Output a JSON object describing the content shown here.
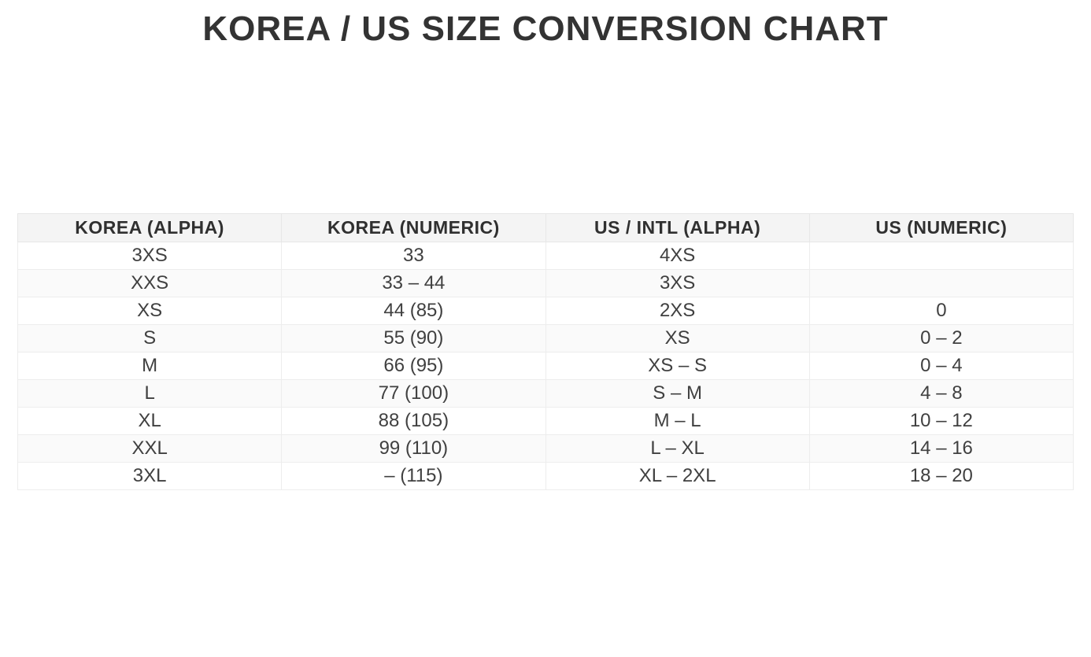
{
  "page": {
    "title": "KOREA / US SIZE CONVERSION CHART"
  },
  "table": {
    "headers": [
      "KOREA (ALPHA)",
      "KOREA (NUMERIC)",
      "US / INTL (ALPHA)",
      "US (NUMERIC)"
    ],
    "rows": [
      [
        "3XS",
        "33",
        "4XS",
        ""
      ],
      [
        "XXS",
        "33 – 44",
        "3XS",
        ""
      ],
      [
        "XS",
        "44 (85)",
        "2XS",
        "0"
      ],
      [
        "S",
        "55 (90)",
        "XS",
        "0 – 2"
      ],
      [
        "M",
        "66 (95)",
        "XS – S",
        "0 – 4"
      ],
      [
        "L",
        "77 (100)",
        "S – M",
        "4 – 8"
      ],
      [
        "XL",
        "88 (105)",
        "M – L",
        "10 – 12"
      ],
      [
        "XXL",
        "99 (110)",
        "L – XL",
        "14 – 16"
      ],
      [
        "3XL",
        "– (115)",
        "XL – 2XL",
        "18 – 20"
      ]
    ]
  },
  "chart_data": {
    "type": "table",
    "title": "KOREA / US SIZE CONVERSION CHART",
    "columns": [
      "KOREA (ALPHA)",
      "KOREA (NUMERIC)",
      "US / INTL (ALPHA)",
      "US (NUMERIC)"
    ],
    "rows": [
      [
        "3XS",
        "33",
        "4XS",
        ""
      ],
      [
        "XXS",
        "33 – 44",
        "3XS",
        ""
      ],
      [
        "XS",
        "44 (85)",
        "2XS",
        "0"
      ],
      [
        "S",
        "55 (90)",
        "XS",
        "0 – 2"
      ],
      [
        "M",
        "66 (95)",
        "XS – S",
        "0 – 4"
      ],
      [
        "L",
        "77 (100)",
        "S – M",
        "4 – 8"
      ],
      [
        "XL",
        "88 (105)",
        "M – L",
        "10 – 12"
      ],
      [
        "XXL",
        "99 (110)",
        "L – XL",
        "14 – 16"
      ],
      [
        "3XL",
        "– (115)",
        "XL – 2XL",
        "18 – 20"
      ]
    ],
    "layout": {
      "grid": true,
      "header_row": true,
      "zebra_striping": true
    }
  },
  "colors": {
    "header_bg": "#f4f4f4",
    "row_alt_bg": "#fafafa",
    "grid_border": "#ededed",
    "header_border": "#e7e7e7",
    "text": "#404040",
    "title_text": "#333333",
    "page_bg": "#ffffff"
  }
}
